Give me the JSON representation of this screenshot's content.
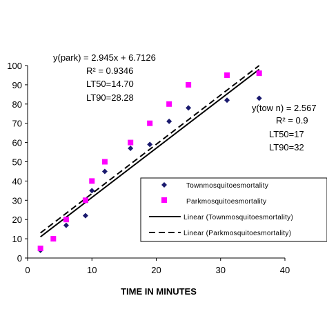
{
  "chart_data": {
    "type": "scatter",
    "xlabel": "TIME IN MINUTES",
    "ylabel": "",
    "xlim": [
      0,
      40
    ],
    "ylim": [
      0,
      100
    ],
    "x_ticks": [
      "0",
      "10",
      "20",
      "30",
      "40"
    ],
    "y_ticks": [
      "0",
      "10",
      "20",
      "30",
      "40",
      "50",
      "60",
      "70",
      "80",
      "90",
      "100"
    ],
    "grid": false,
    "legend_position": "right",
    "series": [
      {
        "name": "Townmosquitoesmortality",
        "marker": "diamond",
        "color": "#1a1a6e",
        "points": [
          [
            2,
            4
          ],
          [
            4,
            10
          ],
          [
            6,
            17
          ],
          [
            9,
            22
          ],
          [
            10,
            35
          ],
          [
            12,
            45
          ],
          [
            16,
            57
          ],
          [
            19,
            59
          ],
          [
            22,
            71
          ],
          [
            25,
            78
          ],
          [
            31,
            82
          ],
          [
            36,
            83
          ]
        ]
      },
      {
        "name": "Parkmosquitoesmortality",
        "marker": "square",
        "color": "#ff00ff",
        "points": [
          [
            2,
            5
          ],
          [
            4,
            10
          ],
          [
            6,
            20
          ],
          [
            9,
            30
          ],
          [
            10,
            40
          ],
          [
            12,
            50
          ],
          [
            16,
            60
          ],
          [
            19,
            70
          ],
          [
            22,
            80
          ],
          [
            25,
            90
          ],
          [
            31,
            95
          ],
          [
            36,
            96
          ]
        ]
      }
    ],
    "trendlines": [
      {
        "name": "Linear (Townmosquitoesmortality)",
        "style": "solid",
        "x_range": [
          2,
          36
        ],
        "y_range": [
          11,
          98
        ]
      },
      {
        "name": "Linear (Parkmosquitoesmortality)",
        "style": "dashed",
        "x_range": [
          2,
          36
        ],
        "y_range": [
          13,
          100
        ]
      }
    ],
    "annotations": {
      "park": [
        "y(park) = 2.945x + 6.7126",
        "R² = 0.9346",
        "LT50=14.70",
        "LT90=28.28"
      ],
      "town": [
        "y(tow n) = 2.567",
        "R² = 0.9",
        "LT50=17",
        "LT90=32"
      ]
    }
  }
}
